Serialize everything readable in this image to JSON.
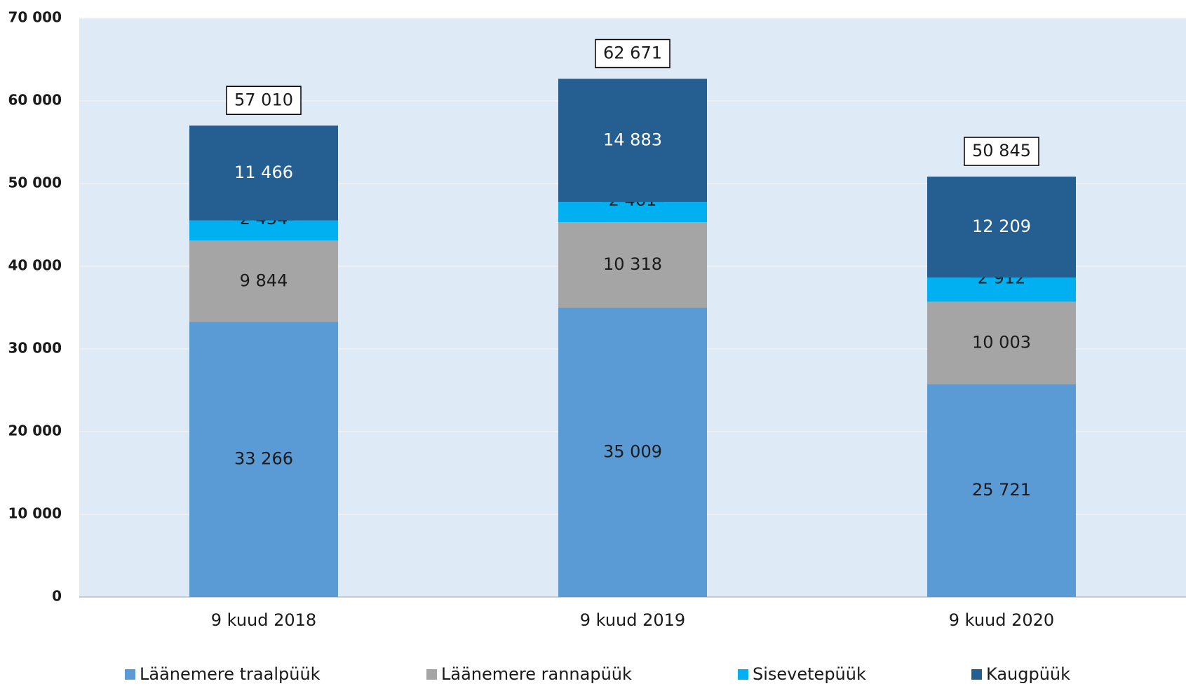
{
  "chart_data": {
    "type": "bar",
    "stacked": true,
    "categories": [
      "9 kuud 2018",
      "9 kuud 2019",
      "9 kuud 2020"
    ],
    "series": [
      {
        "name": "Läänemere traalpüük",
        "color": "#5b9bd5",
        "values": [
          33266,
          35009,
          25721
        ],
        "value_labels": [
          "33 266",
          "35 009",
          "25 721"
        ]
      },
      {
        "name": "Läänemere rannapüük",
        "color": "#a5a5a5",
        "values": [
          9844,
          10318,
          10003
        ],
        "value_labels": [
          "9 844",
          "10 318",
          "10 003"
        ]
      },
      {
        "name": "Sisevetepüük",
        "color": "#00b0f0",
        "values": [
          2434,
          2461,
          2912
        ],
        "value_labels": [
          "2 434",
          "2 461",
          "2 912"
        ]
      },
      {
        "name": "Kaugpüük",
        "color": "#255e91",
        "values": [
          11466,
          14883,
          12209
        ],
        "value_labels": [
          "11 466",
          "14 883",
          "12 209"
        ]
      }
    ],
    "totals": [
      57010,
      62671,
      50845
    ],
    "total_labels": [
      "57 010",
      "62 671",
      "50 845"
    ],
    "ylim": [
      0,
      70000
    ],
    "yticks": [
      0,
      {
        "value": 10000,
        "label": "10 000"
      },
      {
        "value": 20000,
        "label": "20 000"
      },
      {
        "value": 30000,
        "label": "30 000"
      },
      {
        "value": 40000,
        "label": "40 000"
      },
      {
        "value": 50000,
        "label": "50 000"
      },
      {
        "value": 60000,
        "label": "60 000"
      },
      {
        "value": 70000,
        "label": "70 000"
      }
    ],
    "grid": true,
    "legend": "bottom"
  }
}
